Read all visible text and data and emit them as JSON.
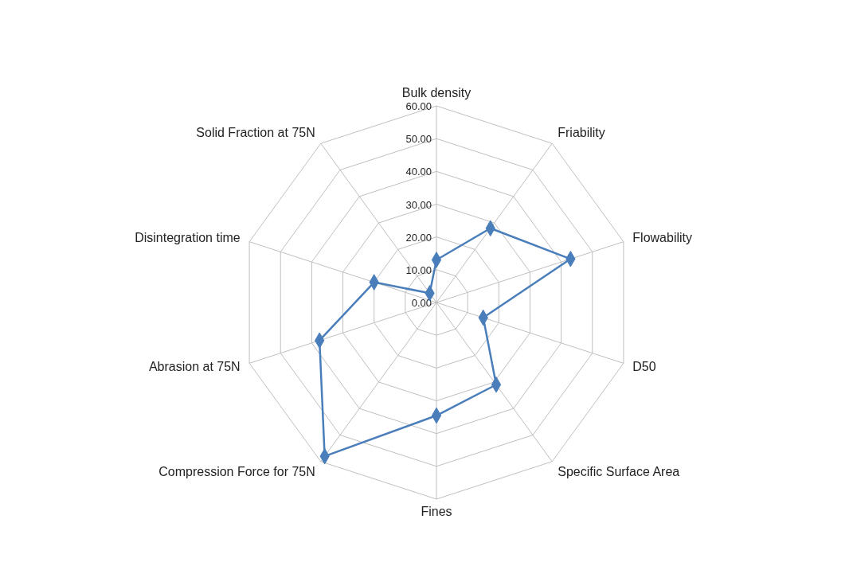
{
  "chart_data": {
    "type": "radar",
    "categories": [
      "Bulk density",
      "Friability",
      "Flowability",
      "D50",
      "Specific Surface Area",
      "Fines",
      "Compression Force for 75N",
      "Abrasion at 75N",
      "Disintegration time",
      "Solid Fraction at 75N"
    ],
    "series": [
      {
        "color": "#4a7ebb",
        "values": [
          13,
          28,
          43,
          15,
          31,
          34.5,
          58,
          37.5,
          20,
          3.5
        ]
      }
    ],
    "ylim": [
      0,
      60
    ],
    "yticks": [
      {
        "value": 0,
        "label": "0.00"
      },
      {
        "value": 10,
        "label": "10.00"
      },
      {
        "value": 20,
        "label": "20.00"
      },
      {
        "value": 30,
        "label": "30.00"
      },
      {
        "value": 40,
        "label": "40.00"
      },
      {
        "value": 50,
        "label": "50.00"
      },
      {
        "value": 60,
        "label": "60.00"
      }
    ],
    "grid": true,
    "marker": "diamond"
  }
}
